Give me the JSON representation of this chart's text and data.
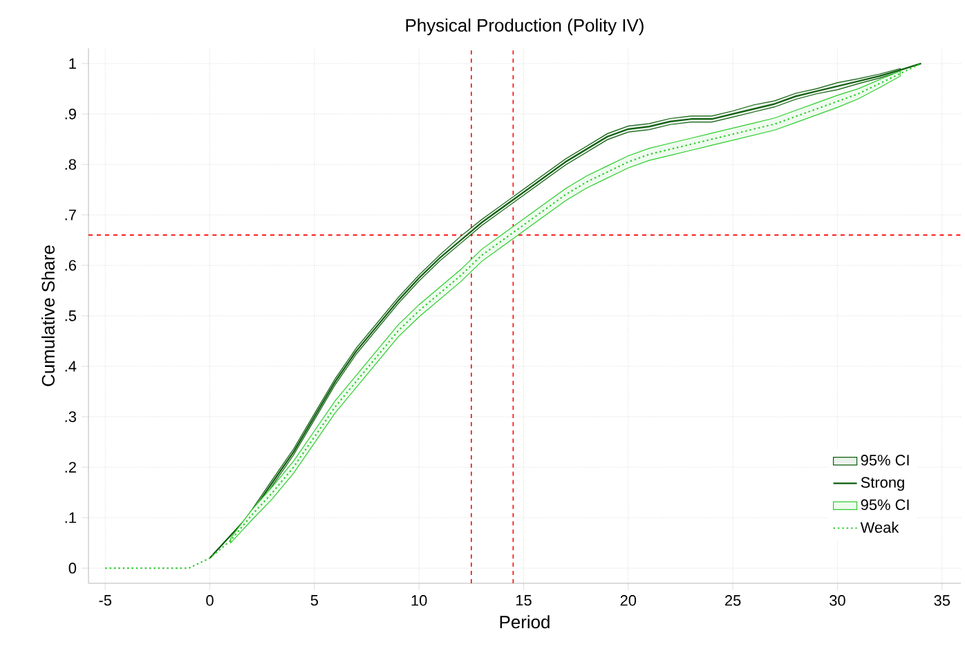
{
  "chart_data": {
    "type": "line",
    "title": "Physical Production (Polity IV)",
    "xlabel": "Period",
    "ylabel": "Cumulative Share",
    "x": [
      -5,
      -4,
      -3,
      -2,
      -1,
      0,
      1,
      2,
      3,
      4,
      5,
      6,
      7,
      8,
      9,
      10,
      11,
      12,
      13,
      14,
      15,
      16,
      17,
      18,
      19,
      20,
      21,
      22,
      23,
      24,
      25,
      26,
      27,
      28,
      29,
      30,
      31,
      32,
      33,
      34
    ],
    "series": [
      {
        "name": "Strong",
        "color": "#0b5d0b",
        "line_style": "solid",
        "values": [
          null,
          null,
          null,
          null,
          null,
          0.02,
          null,
          0.11,
          0.17,
          0.23,
          0.3,
          0.37,
          0.43,
          0.48,
          0.53,
          0.575,
          0.615,
          0.65,
          0.685,
          0.715,
          0.745,
          0.775,
          0.805,
          0.83,
          0.855,
          0.87,
          0.875,
          0.885,
          0.89,
          0.89,
          0.9,
          0.91,
          0.92,
          0.935,
          0.945,
          0.955,
          0.965,
          0.975,
          0.987,
          1
        ],
        "lower": [
          null,
          null,
          null,
          null,
          null,
          null,
          0.052,
          0.105,
          0.164,
          0.224,
          0.294,
          0.364,
          0.424,
          0.474,
          0.524,
          0.569,
          0.609,
          0.644,
          0.679,
          0.709,
          0.739,
          0.769,
          0.799,
          0.824,
          0.849,
          0.864,
          0.869,
          0.879,
          0.884,
          0.884,
          0.894,
          0.904,
          0.914,
          0.929,
          0.94,
          0.948,
          0.96,
          0.971,
          0.984,
          null
        ],
        "upper": [
          null,
          null,
          null,
          null,
          null,
          null,
          0.058,
          0.115,
          0.176,
          0.236,
          0.306,
          0.376,
          0.436,
          0.486,
          0.536,
          0.581,
          0.621,
          0.658,
          0.691,
          0.721,
          0.751,
          0.781,
          0.811,
          0.836,
          0.861,
          0.876,
          0.881,
          0.891,
          0.896,
          0.896,
          0.906,
          0.918,
          0.926,
          0.941,
          0.95,
          0.962,
          0.97,
          0.979,
          0.99,
          null
        ]
      },
      {
        "name": "Weak",
        "color": "#2ecc2e",
        "line_style": "dotted",
        "values": [
          0,
          0,
          0,
          0,
          0,
          0.02,
          0.055,
          0.105,
          0.15,
          0.2,
          0.26,
          0.32,
          0.37,
          0.42,
          0.47,
          0.51,
          0.545,
          0.58,
          0.62,
          0.65,
          0.68,
          0.71,
          0.74,
          0.765,
          0.785,
          0.805,
          0.82,
          0.83,
          0.84,
          0.85,
          0.86,
          0.87,
          0.88,
          0.895,
          0.91,
          0.925,
          0.94,
          0.96,
          0.98,
          1
        ],
        "lower": [
          null,
          null,
          null,
          null,
          null,
          null,
          0.05,
          0.095,
          0.138,
          0.188,
          0.248,
          0.308,
          0.358,
          0.408,
          0.458,
          0.498,
          0.533,
          0.568,
          0.608,
          0.638,
          0.668,
          0.698,
          0.728,
          0.753,
          0.773,
          0.793,
          0.808,
          0.818,
          0.828,
          0.838,
          0.848,
          0.858,
          0.868,
          0.883,
          0.898,
          0.913,
          0.93,
          0.952,
          0.975,
          null
        ],
        "upper": [
          null,
          null,
          null,
          null,
          null,
          null,
          0.06,
          0.115,
          0.162,
          0.212,
          0.272,
          0.332,
          0.382,
          0.432,
          0.482,
          0.522,
          0.557,
          0.592,
          0.632,
          0.662,
          0.692,
          0.722,
          0.752,
          0.777,
          0.797,
          0.817,
          0.832,
          0.842,
          0.852,
          0.862,
          0.872,
          0.882,
          0.892,
          0.907,
          0.922,
          0.937,
          0.95,
          0.968,
          0.985,
          null
        ]
      }
    ],
    "annotations": [
      "95% CI",
      "95% CI"
    ],
    "xlim": [
      -5.8,
      35.9
    ],
    "xticks": [
      -5,
      0,
      5,
      10,
      15,
      20,
      25,
      30,
      35
    ],
    "ylim": [
      -0.03,
      1.03
    ],
    "yticks": [
      0,
      {
        "value": 0.1,
        "label": ".1"
      },
      {
        "value": 0.2,
        "label": ".2"
      },
      {
        "value": 0.3,
        "label": ".3"
      },
      {
        "value": 0.4,
        "label": ".4"
      },
      {
        "value": 0.5,
        "label": ".5"
      },
      {
        "value": 0.6,
        "label": ".6"
      },
      {
        "value": 0.7,
        "label": ".7"
      },
      {
        "value": 0.8,
        "label": ".8"
      },
      {
        "value": 0.9,
        "label": ".9"
      },
      1
    ],
    "ref_lines": [
      {
        "axis": "x",
        "value": 12.5,
        "color": "#ff0000",
        "line_style": "dashed"
      },
      {
        "axis": "x",
        "value": 14.5,
        "color": "#ff0000",
        "line_style": "dashed"
      },
      {
        "axis": "y",
        "value": 0.66,
        "color": "#ff0000",
        "line_style": "dashed"
      }
    ],
    "grid": true,
    "legend": "bottom right"
  }
}
